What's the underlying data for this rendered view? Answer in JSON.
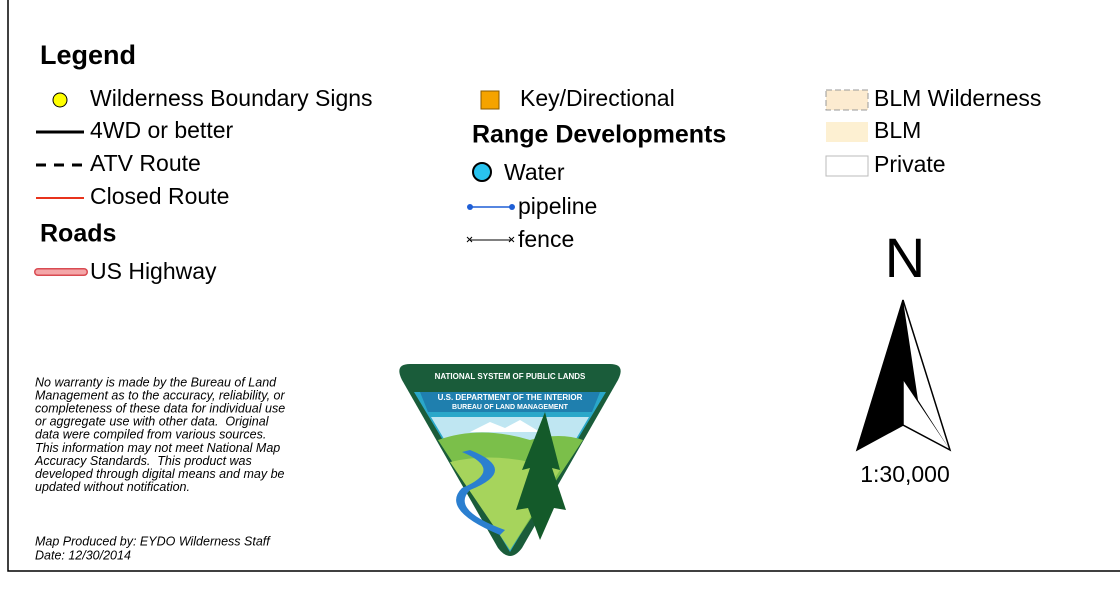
{
  "legend_title": "Legend",
  "column1": [
    "Wilderness Boundary Signs",
    "4WD or better",
    "ATV Route",
    "Closed Route"
  ],
  "roads": {
    "heading": "Roads",
    "items": [
      "US Highway"
    ]
  },
  "column2": [
    "Key/Directional"
  ],
  "range": {
    "heading": "Range Developments",
    "items": [
      "Water",
      "pipeline",
      "fence"
    ]
  },
  "land": [
    "BLM Wilderness",
    "BLM",
    "Private"
  ],
  "north": "N",
  "scale": "1:30,000",
  "disclaimer": [
    "No warranty is made by the Bureau of Land",
    "Management as to the accuracy, reliability, or",
    "completeness of these data for individual use",
    "or aggregate use with other data.  Original",
    "data were compiled from various sources.",
    "This information may not meet National Map",
    "Accuracy Standards.  This product was",
    "developed through digital means and may be",
    "updated without notification."
  ],
  "credits": [
    "Map Produced by: EYDO Wilderness Staff",
    "Date: 12/30/2014"
  ],
  "logo": {
    "banner": "NATIONAL SYSTEM OF PUBLIC LANDS",
    "lines": [
      "U.S. DEPARTMENT OF THE INTERIOR",
      "BUREAU OF LAND MANAGEMENT"
    ]
  }
}
